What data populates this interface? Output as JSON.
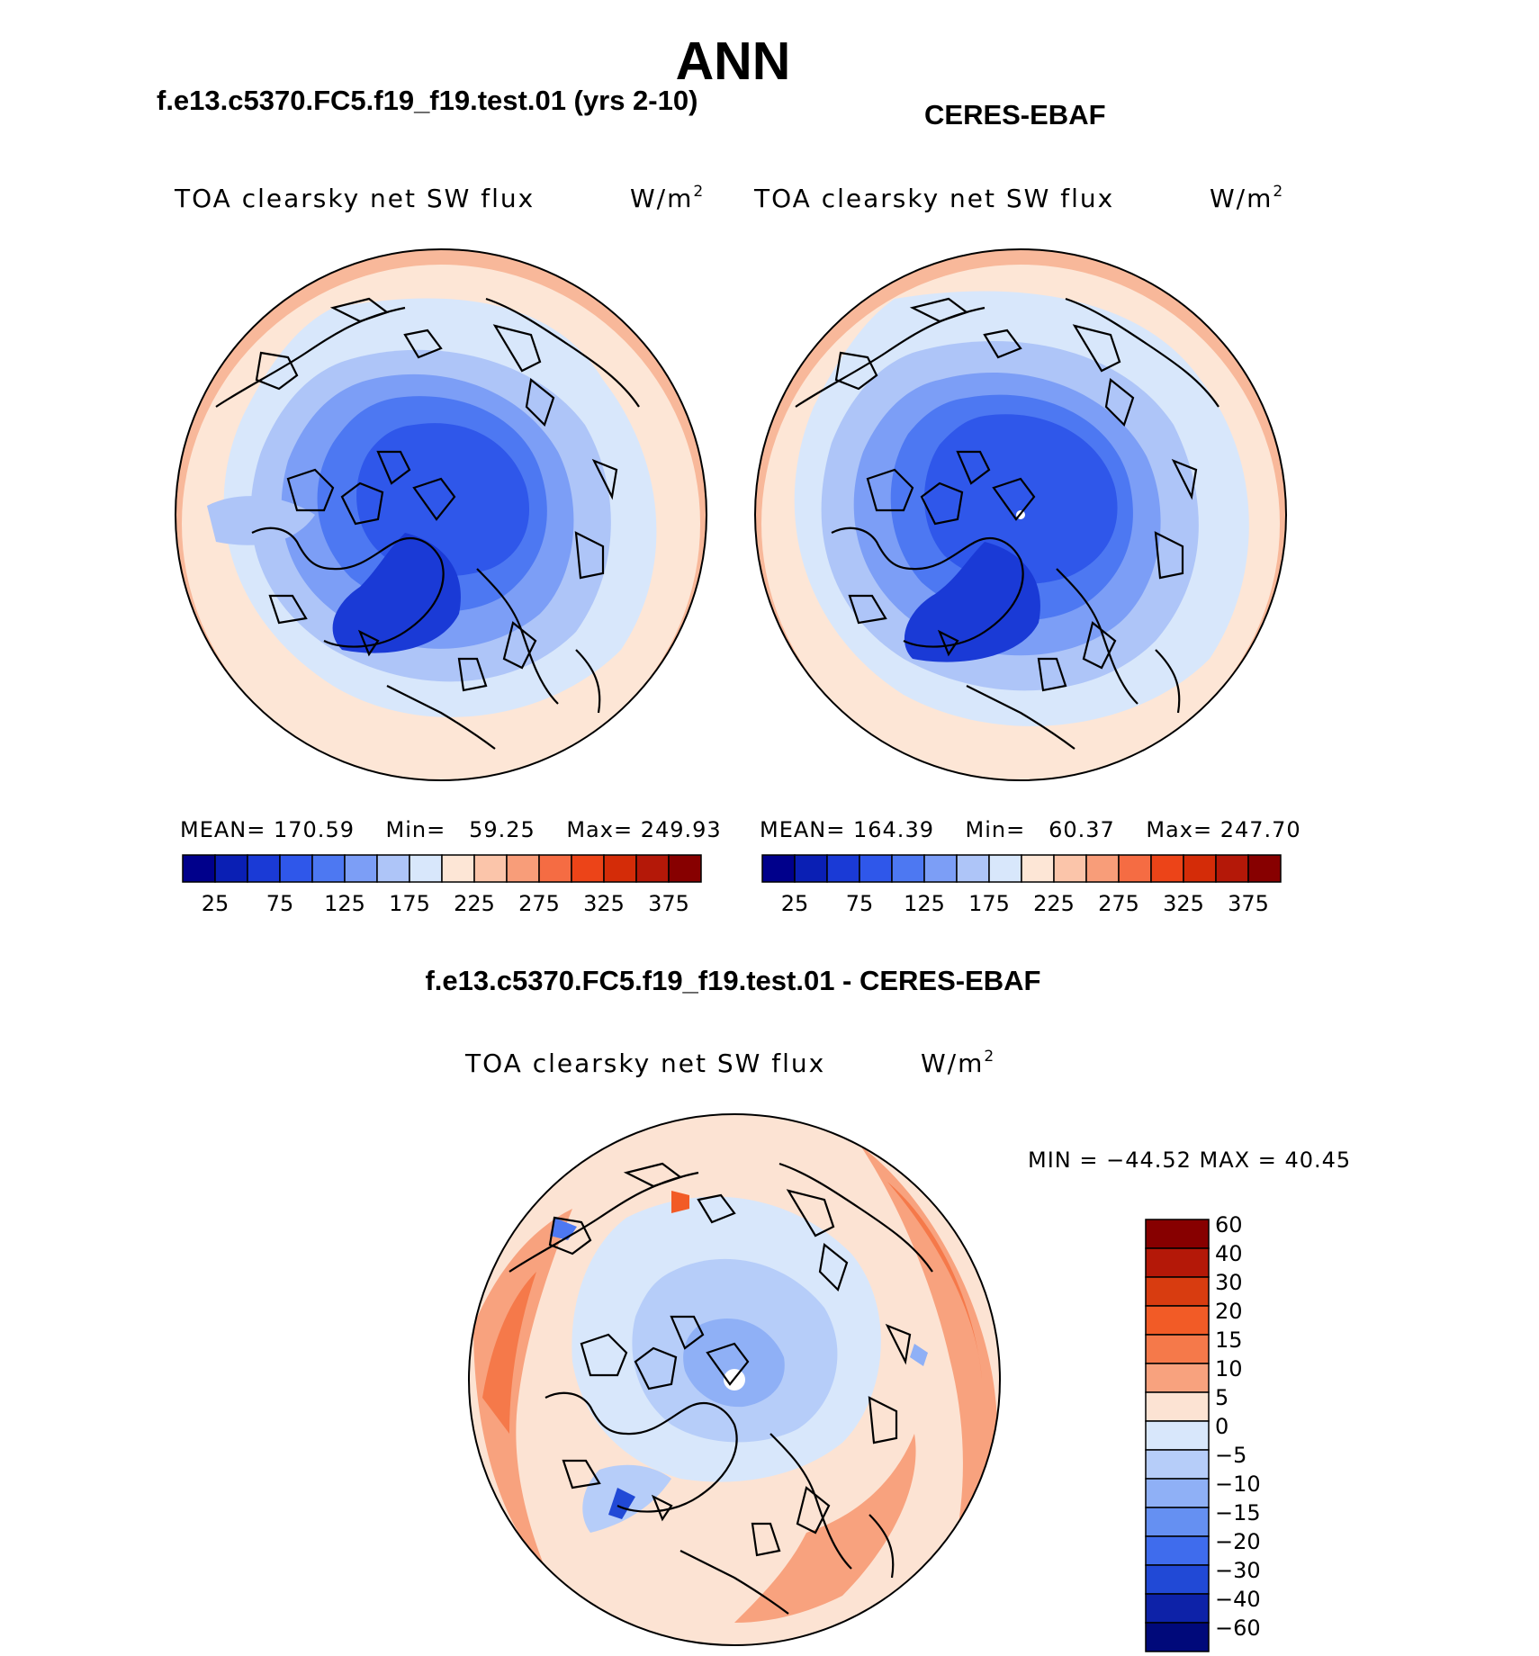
{
  "figure": {
    "season_title": "ANN",
    "diff_title": "f.e13.c5370.FC5.f19_f19.test.01 - CERES-EBAF"
  },
  "panels": [
    {
      "name": "model",
      "title": "f.e13.c5370.FC5.f19_f19.test.01 (yrs 2-10)",
      "variable": "TOA clearsky net SW flux",
      "units": "W/m",
      "units_sup": "2",
      "mean_label": "MEAN=",
      "mean": "170.59",
      "min_label": "Min=",
      "min": "59.25",
      "max_label": "Max=",
      "max": "249.93",
      "tick_labels": [
        "25",
        "75",
        "125",
        "175",
        "225",
        "275",
        "325",
        "375"
      ]
    },
    {
      "name": "obs",
      "title": "CERES-EBAF",
      "variable": "TOA clearsky net SW flux",
      "units": "W/m",
      "units_sup": "2",
      "mean_label": "MEAN=",
      "mean": "164.39",
      "min_label": "Min=",
      "min": "60.37",
      "max_label": "Max=",
      "max": "247.70",
      "tick_labels": [
        "25",
        "75",
        "125",
        "175",
        "225",
        "275",
        "325",
        "375"
      ]
    }
  ],
  "difference": {
    "variable": "TOA clearsky net SW flux",
    "units": "W/m",
    "units_sup": "2",
    "minmax": "MIN = −44.52 MAX =   40.45",
    "levels": [
      "60",
      "40",
      "30",
      "20",
      "15",
      "10",
      "5",
      "0",
      "−5",
      "−10",
      "−15",
      "−20",
      "−30",
      "−40",
      "−60"
    ]
  },
  "colors": {
    "abs_colorbar": [
      "#00008b",
      "#0a1fb4",
      "#1a3ad6",
      "#2f57ea",
      "#4d78f2",
      "#7c9ef6",
      "#aec5f8",
      "#d8e7fb",
      "#fde6d6",
      "#fbc5aa",
      "#f89d79",
      "#f56c43",
      "#ec4418",
      "#d42c08",
      "#b41808",
      "#870000"
    ],
    "diff_colorbar": [
      "#870000",
      "#b41808",
      "#d83c10",
      "#f25b26",
      "#f5794a",
      "#f8a27e",
      "#fce3d3",
      "#d8e7fb",
      "#b6cdf9",
      "#8fb0f6",
      "#6590f2",
      "#3f6ced",
      "#2149d6",
      "#0d22a8",
      "#00097a"
    ]
  }
}
